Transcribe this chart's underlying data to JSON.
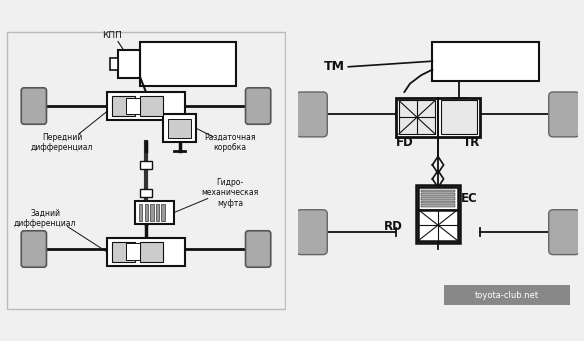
{
  "bg_color_left": "#d8d8d8",
  "bg_color_right": "#ffffff",
  "fig_bg": "#f0f0f0",
  "wheel_color": "#aaaaaa",
  "wheel_edge": "#555555",
  "dark": "#111111",
  "mid_gray": "#888888",
  "light_gray": "#cccccc",
  "white": "#ffffff",
  "watermark_bg": "#888888",
  "watermark_text": "toyota-club.net",
  "left_labels": {
    "kpp": "КПП",
    "front_diff": "Передний\nдифференциал",
    "transfer": "Раздаточная\nкоробка",
    "rear_diff": "Задний\nдифференциал",
    "hydro": "Гидро-\nмеханическая\nмуфта"
  },
  "right_labels": {
    "TM": "TM",
    "FD": "FD",
    "TR": "TR",
    "EC": "EC",
    "RD": "RD"
  }
}
